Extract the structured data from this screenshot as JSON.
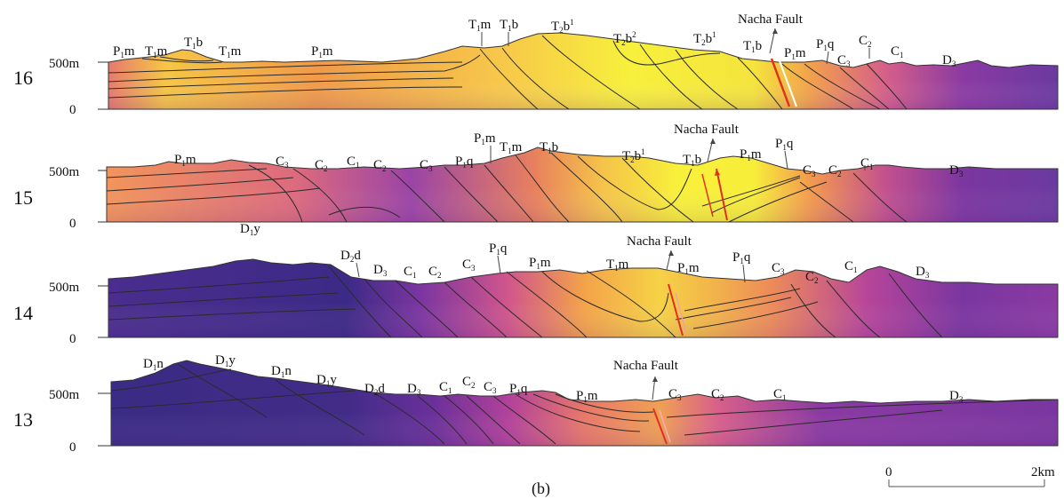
{
  "profiles": [
    {
      "id": "16",
      "label": "16",
      "elev_top": "500m",
      "elev_base": "0",
      "fault_label": "Nacha Fault",
      "units": [
        {
          "main": "P",
          "sub": "1",
          "rest": "m"
        },
        {
          "main": "T",
          "sub": "1",
          "rest": "m"
        },
        {
          "main": "T",
          "sub": "1",
          "rest": "b"
        },
        {
          "main": "T",
          "sub": "1",
          "rest": "m"
        },
        {
          "main": "P",
          "sub": "1",
          "rest": "m"
        },
        {
          "main": "T",
          "sub": "1",
          "rest": "m"
        },
        {
          "main": "T",
          "sub": "1",
          "rest": "b"
        },
        {
          "main": "T",
          "sub": "2",
          "rest": "b",
          "sup": "1"
        },
        {
          "main": "T",
          "sub": "2",
          "rest": "b",
          "sup": "2"
        },
        {
          "main": "T",
          "sub": "2",
          "rest": "b",
          "sup": "1"
        },
        {
          "main": "T",
          "sub": "1",
          "rest": "b"
        },
        {
          "main": "P",
          "sub": "1",
          "rest": "m"
        },
        {
          "main": "P",
          "sub": "1",
          "rest": "q"
        },
        {
          "main": "C",
          "sub": "3",
          "rest": ""
        },
        {
          "main": "C",
          "sub": "2",
          "rest": ""
        },
        {
          "main": "C",
          "sub": "1",
          "rest": ""
        },
        {
          "main": "D",
          "sub": "3",
          "rest": ""
        }
      ]
    },
    {
      "id": "15",
      "label": "15",
      "elev_top": "500m",
      "elev_base": "0",
      "fault_label": "Nacha Fault",
      "units": [
        {
          "main": "P",
          "sub": "1",
          "rest": "m"
        },
        {
          "main": "C",
          "sub": "3",
          "rest": ""
        },
        {
          "main": "C",
          "sub": "2",
          "rest": ""
        },
        {
          "main": "C",
          "sub": "1",
          "rest": ""
        },
        {
          "main": "C",
          "sub": "2",
          "rest": ""
        },
        {
          "main": "C",
          "sub": "3",
          "rest": ""
        },
        {
          "main": "P",
          "sub": "1",
          "rest": "q"
        },
        {
          "main": "P",
          "sub": "1",
          "rest": "m"
        },
        {
          "main": "T",
          "sub": "1",
          "rest": "m"
        },
        {
          "main": "T",
          "sub": "1",
          "rest": "b"
        },
        {
          "main": "T",
          "sub": "2",
          "rest": "b",
          "sup": "1"
        },
        {
          "main": "T",
          "sub": "1",
          "rest": "b"
        },
        {
          "main": "P",
          "sub": "1",
          "rest": "m"
        },
        {
          "main": "P",
          "sub": "1",
          "rest": "q"
        },
        {
          "main": "C",
          "sub": "3",
          "rest": ""
        },
        {
          "main": "C",
          "sub": "2",
          "rest": ""
        },
        {
          "main": "C",
          "sub": "1",
          "rest": ""
        },
        {
          "main": "D",
          "sub": "3",
          "rest": ""
        }
      ]
    },
    {
      "id": "14",
      "label": "14",
      "elev_top": "500m",
      "elev_base": "0",
      "fault_label": "Nacha Fault",
      "units": [
        {
          "main": "D",
          "sub": "1",
          "rest": "y"
        },
        {
          "main": "D",
          "sub": "2",
          "rest": "d"
        },
        {
          "main": "D",
          "sub": "3",
          "rest": ""
        },
        {
          "main": "C",
          "sub": "1",
          "rest": ""
        },
        {
          "main": "C",
          "sub": "2",
          "rest": ""
        },
        {
          "main": "C",
          "sub": "3",
          "rest": ""
        },
        {
          "main": "P",
          "sub": "1",
          "rest": "q"
        },
        {
          "main": "P",
          "sub": "1",
          "rest": "m"
        },
        {
          "main": "T",
          "sub": "1",
          "rest": "m"
        },
        {
          "main": "P",
          "sub": "1",
          "rest": "m"
        },
        {
          "main": "P",
          "sub": "1",
          "rest": "q"
        },
        {
          "main": "C",
          "sub": "3",
          "rest": ""
        },
        {
          "main": "C",
          "sub": "2",
          "rest": ""
        },
        {
          "main": "C",
          "sub": "1",
          "rest": ""
        },
        {
          "main": "D",
          "sub": "3",
          "rest": ""
        }
      ]
    },
    {
      "id": "13",
      "label": "13",
      "elev_top": "500m",
      "elev_base": "0",
      "fault_label": "Nacha Fault",
      "units": [
        {
          "main": "D",
          "sub": "1",
          "rest": "n"
        },
        {
          "main": "D",
          "sub": "1",
          "rest": "y"
        },
        {
          "main": "D",
          "sub": "1",
          "rest": "n"
        },
        {
          "main": "D",
          "sub": "1",
          "rest": "y"
        },
        {
          "main": "D",
          "sub": "2",
          "rest": "d"
        },
        {
          "main": "D",
          "sub": "3",
          "rest": ""
        },
        {
          "main": "C",
          "sub": "1",
          "rest": ""
        },
        {
          "main": "C",
          "sub": "2",
          "rest": ""
        },
        {
          "main": "C",
          "sub": "3",
          "rest": ""
        },
        {
          "main": "P",
          "sub": "1",
          "rest": "q"
        },
        {
          "main": "P",
          "sub": "1",
          "rest": "m"
        },
        {
          "main": "C",
          "sub": "3",
          "rest": ""
        },
        {
          "main": "C",
          "sub": "2",
          "rest": ""
        },
        {
          "main": "C",
          "sub": "1",
          "rest": ""
        },
        {
          "main": "D",
          "sub": "3",
          "rest": ""
        }
      ]
    }
  ],
  "caption": "(b)",
  "scale_bar": {
    "start": "0",
    "end": "2km"
  },
  "colors": {
    "deep_purple": "#3c2a86",
    "purple": "#6a2f9a",
    "magenta": "#c24a9a",
    "orange": "#f08a4b",
    "yellow": "#f5ef3a",
    "fault_red": "#e0301f"
  }
}
